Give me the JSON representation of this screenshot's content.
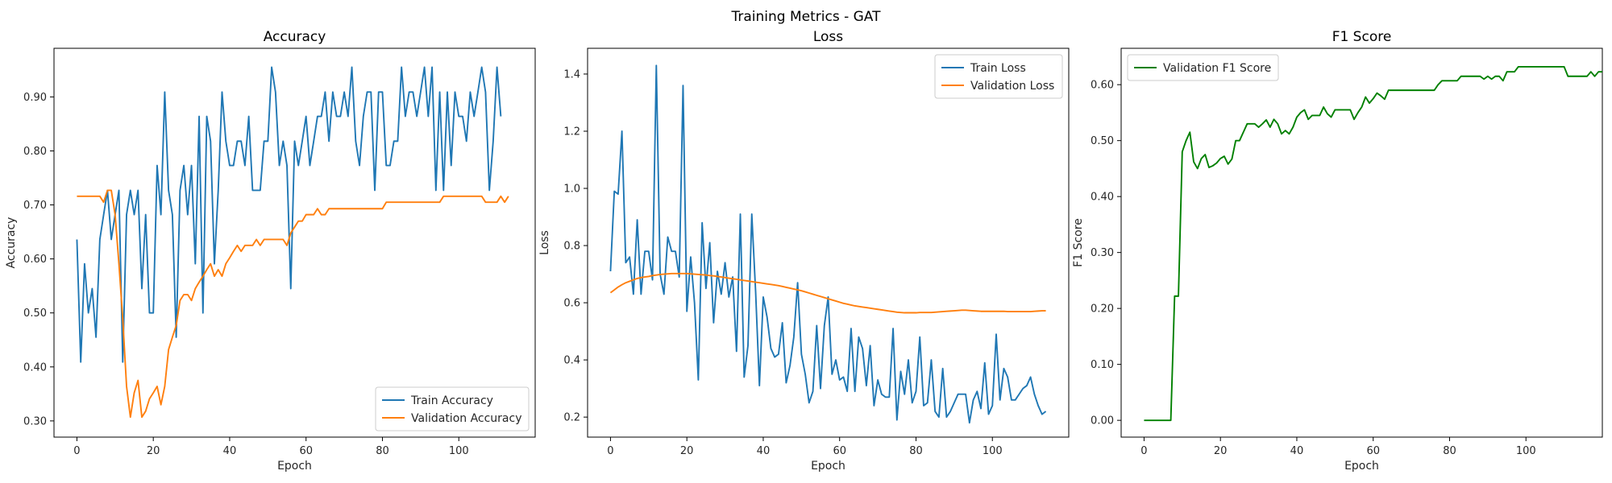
{
  "figure": {
    "suptitle": "Training Metrics - GAT"
  },
  "chart_data": [
    {
      "type": "line",
      "title": "Accuracy",
      "xlabel": "Epoch",
      "ylabel": "Accuracy",
      "xlim": [
        -6,
        120
      ],
      "ylim": [
        0.27,
        0.99
      ],
      "xticks": [
        0,
        20,
        40,
        60,
        80,
        100
      ],
      "yticks": [
        0.3,
        0.4,
        0.5,
        0.6,
        0.7,
        0.8,
        0.9
      ],
      "legend_position": "lower-right",
      "series": [
        {
          "name": "Train Accuracy",
          "color": "#1f77b4",
          "values": [
            0.636,
            0.409,
            0.591,
            0.5,
            0.545,
            0.455,
            0.636,
            0.682,
            0.727,
            0.636,
            0.682,
            0.727,
            0.409,
            0.682,
            0.727,
            0.682,
            0.727,
            0.545,
            0.682,
            0.5,
            0.5,
            0.773,
            0.682,
            0.909,
            0.727,
            0.682,
            0.455,
            0.727,
            0.773,
            0.682,
            0.773,
            0.591,
            0.864,
            0.5,
            0.864,
            0.818,
            0.591,
            0.727,
            0.909,
            0.818,
            0.773,
            0.773,
            0.818,
            0.818,
            0.773,
            0.864,
            0.727,
            0.727,
            0.727,
            0.818,
            0.818,
            0.955,
            0.909,
            0.773,
            0.818,
            0.773,
            0.545,
            0.818,
            0.773,
            0.818,
            0.864,
            0.773,
            0.818,
            0.864,
            0.864,
            0.909,
            0.818,
            0.909,
            0.864,
            0.864,
            0.909,
            0.864,
            0.955,
            0.818,
            0.773,
            0.864,
            0.909,
            0.909,
            0.727,
            0.909,
            0.909,
            0.773,
            0.773,
            0.818,
            0.818,
            0.955,
            0.864,
            0.909,
            0.909,
            0.864,
            0.909,
            0.955,
            0.864,
            0.955,
            0.727,
            0.909,
            0.727,
            0.909,
            0.773,
            0.909,
            0.864,
            0.864,
            0.818,
            0.909,
            0.864,
            0.909,
            0.955,
            0.909,
            0.727,
            0.818,
            0.955,
            0.864
          ]
        },
        {
          "name": "Validation Accuracy",
          "color": "#ff7f0e",
          "values": [
            0.716,
            0.716,
            0.716,
            0.716,
            0.716,
            0.716,
            0.716,
            0.705,
            0.727,
            0.727,
            0.682,
            0.591,
            0.489,
            0.364,
            0.307,
            0.352,
            0.375,
            0.307,
            0.318,
            0.341,
            0.352,
            0.364,
            0.33,
            0.364,
            0.432,
            0.455,
            0.477,
            0.523,
            0.534,
            0.534,
            0.523,
            0.545,
            0.557,
            0.568,
            0.58,
            0.591,
            0.568,
            0.58,
            0.568,
            0.591,
            0.602,
            0.614,
            0.625,
            0.614,
            0.625,
            0.625,
            0.625,
            0.636,
            0.625,
            0.636,
            0.636,
            0.636,
            0.636,
            0.636,
            0.636,
            0.625,
            0.648,
            0.659,
            0.67,
            0.67,
            0.682,
            0.682,
            0.682,
            0.693,
            0.682,
            0.682,
            0.693,
            0.693,
            0.693,
            0.693,
            0.693,
            0.693,
            0.693,
            0.693,
            0.693,
            0.693,
            0.693,
            0.693,
            0.693,
            0.693,
            0.693,
            0.705,
            0.705,
            0.705,
            0.705,
            0.705,
            0.705,
            0.705,
            0.705,
            0.705,
            0.705,
            0.705,
            0.705,
            0.705,
            0.705,
            0.705,
            0.716,
            0.716,
            0.716,
            0.716,
            0.716,
            0.716,
            0.716,
            0.716,
            0.716,
            0.716,
            0.716,
            0.705,
            0.705,
            0.705,
            0.705,
            0.716,
            0.705,
            0.716
          ]
        }
      ]
    },
    {
      "type": "line",
      "title": "Loss",
      "xlabel": "Epoch",
      "ylabel": "Loss",
      "xlim": [
        -6,
        120
      ],
      "ylim": [
        0.13,
        1.49
      ],
      "xticks": [
        0,
        20,
        40,
        60,
        80,
        100
      ],
      "yticks": [
        0.2,
        0.4,
        0.6,
        0.8,
        1.0,
        1.2,
        1.4
      ],
      "legend_position": "top-right",
      "series": [
        {
          "name": "Train Loss",
          "color": "#1f77b4",
          "values": [
            0.71,
            0.99,
            0.98,
            1.2,
            0.74,
            0.76,
            0.63,
            0.89,
            0.63,
            0.78,
            0.78,
            0.68,
            1.43,
            0.7,
            0.63,
            0.83,
            0.78,
            0.78,
            0.69,
            1.36,
            0.57,
            0.76,
            0.6,
            0.33,
            0.88,
            0.65,
            0.81,
            0.53,
            0.71,
            0.63,
            0.74,
            0.62,
            0.69,
            0.43,
            0.91,
            0.34,
            0.45,
            0.91,
            0.64,
            0.31,
            0.62,
            0.55,
            0.44,
            0.41,
            0.42,
            0.53,
            0.32,
            0.38,
            0.48,
            0.67,
            0.42,
            0.35,
            0.25,
            0.29,
            0.52,
            0.3,
            0.52,
            0.62,
            0.35,
            0.4,
            0.33,
            0.34,
            0.29,
            0.51,
            0.29,
            0.48,
            0.44,
            0.31,
            0.45,
            0.24,
            0.33,
            0.28,
            0.27,
            0.27,
            0.51,
            0.19,
            0.36,
            0.28,
            0.4,
            0.25,
            0.29,
            0.48,
            0.24,
            0.25,
            0.4,
            0.22,
            0.2,
            0.37,
            0.2,
            0.22,
            0.25,
            0.28,
            0.28,
            0.28,
            0.18,
            0.26,
            0.29,
            0.23,
            0.39,
            0.21,
            0.24,
            0.49,
            0.26,
            0.37,
            0.34,
            0.26,
            0.26,
            0.28,
            0.3,
            0.31,
            0.34,
            0.28,
            0.24,
            0.21,
            0.22
          ]
        },
        {
          "name": "Validation Loss",
          "color": "#ff7f0e",
          "values": [
            0.635,
            0.645,
            0.655,
            0.663,
            0.67,
            0.675,
            0.68,
            0.685,
            0.688,
            0.69,
            0.692,
            0.695,
            0.697,
            0.699,
            0.7,
            0.701,
            0.702,
            0.702,
            0.702,
            0.702,
            0.702,
            0.701,
            0.7,
            0.699,
            0.698,
            0.697,
            0.695,
            0.694,
            0.692,
            0.69,
            0.688,
            0.686,
            0.684,
            0.682,
            0.68,
            0.678,
            0.676,
            0.674,
            0.672,
            0.67,
            0.668,
            0.666,
            0.664,
            0.662,
            0.66,
            0.657,
            0.654,
            0.651,
            0.648,
            0.645,
            0.642,
            0.638,
            0.634,
            0.63,
            0.626,
            0.622,
            0.618,
            0.614,
            0.61,
            0.606,
            0.602,
            0.598,
            0.595,
            0.592,
            0.589,
            0.587,
            0.585,
            0.583,
            0.581,
            0.579,
            0.577,
            0.575,
            0.573,
            0.571,
            0.569,
            0.567,
            0.566,
            0.565,
            0.565,
            0.565,
            0.565,
            0.566,
            0.566,
            0.566,
            0.566,
            0.567,
            0.568,
            0.569,
            0.57,
            0.571,
            0.572,
            0.573,
            0.574,
            0.574,
            0.573,
            0.572,
            0.571,
            0.57,
            0.57,
            0.57,
            0.57,
            0.57,
            0.57,
            0.57,
            0.569,
            0.569,
            0.569,
            0.569,
            0.569,
            0.569,
            0.569,
            0.57,
            0.571,
            0.572,
            0.572
          ]
        }
      ]
    },
    {
      "type": "line",
      "title": "F1 Score",
      "xlabel": "Epoch",
      "ylabel": "F1 Score",
      "xlim": [
        -6,
        120
      ],
      "ylim": [
        -0.03,
        0.665
      ],
      "xticks": [
        0,
        20,
        40,
        60,
        80,
        100
      ],
      "yticks": [
        0.0,
        0.1,
        0.2,
        0.3,
        0.4,
        0.5,
        0.6
      ],
      "legend_position": "top-left",
      "series": [
        {
          "name": "Validation F1 Score",
          "color": "#008000",
          "values": [
            0.0,
            0.0,
            0.0,
            0.0,
            0.0,
            0.0,
            0.0,
            0.0,
            0.222,
            0.222,
            0.48,
            0.5,
            0.515,
            0.462,
            0.45,
            0.468,
            0.475,
            0.452,
            0.455,
            0.46,
            0.468,
            0.472,
            0.458,
            0.467,
            0.5,
            0.5,
            0.515,
            0.53,
            0.53,
            0.53,
            0.524,
            0.53,
            0.537,
            0.524,
            0.538,
            0.53,
            0.512,
            0.518,
            0.512,
            0.524,
            0.542,
            0.55,
            0.555,
            0.538,
            0.545,
            0.545,
            0.545,
            0.56,
            0.548,
            0.542,
            0.555,
            0.555,
            0.555,
            0.555,
            0.555,
            0.538,
            0.55,
            0.56,
            0.578,
            0.567,
            0.575,
            0.585,
            0.58,
            0.574,
            0.59,
            0.59,
            0.59,
            0.59,
            0.59,
            0.59,
            0.59,
            0.59,
            0.59,
            0.59,
            0.59,
            0.59,
            0.59,
            0.6,
            0.607,
            0.607,
            0.607,
            0.607,
            0.607,
            0.615,
            0.615,
            0.615,
            0.615,
            0.615,
            0.615,
            0.61,
            0.615,
            0.61,
            0.615,
            0.615,
            0.607,
            0.623,
            0.623,
            0.623,
            0.632,
            0.632,
            0.632,
            0.632,
            0.632,
            0.632,
            0.632,
            0.632,
            0.632,
            0.632,
            0.632,
            0.632,
            0.632,
            0.615,
            0.615,
            0.615,
            0.615,
            0.615,
            0.615,
            0.623,
            0.615,
            0.623,
            0.623
          ]
        }
      ]
    }
  ]
}
